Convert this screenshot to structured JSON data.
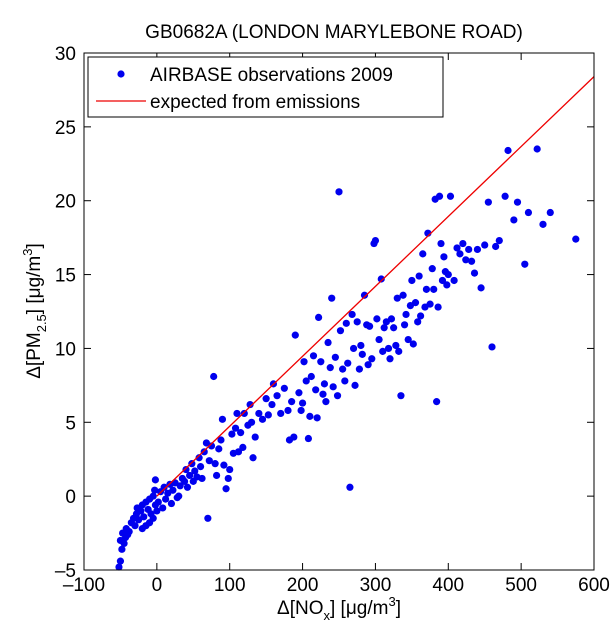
{
  "chart_data": {
    "type": "scatter",
    "title": "GB0682A (LONDON MARYLEBONE ROAD)",
    "xlabel": {
      "prefix": "Δ[NO",
      "sub": "x",
      "mid": "] [μg/m",
      "sup": "3",
      "suffix": "]"
    },
    "ylabel": {
      "prefix": "Δ[PM",
      "sub": "2.5",
      "mid": "] [μg/m",
      "sup": "3",
      "suffix": "]"
    },
    "xlim": [
      -100,
      600
    ],
    "ylim": [
      -5,
      30
    ],
    "xticks": [
      -100,
      0,
      100,
      200,
      300,
      400,
      500,
      600
    ],
    "xtick_labels": [
      "–100",
      "0",
      "100",
      "200",
      "300",
      "400",
      "500",
      "600"
    ],
    "yticks": [
      -5,
      0,
      5,
      10,
      15,
      20,
      25,
      30
    ],
    "ytick_labels": [
      "–5",
      "0",
      "5",
      "10",
      "15",
      "20",
      "25",
      "30"
    ],
    "grid": false,
    "legend_position": "top-left",
    "colors": {
      "observations": "#0000ee",
      "expected": "#ee0000",
      "axes": "#000000"
    },
    "series": [
      {
        "name": "AIRBASE observations 2009",
        "kind": "scatter",
        "points": [
          [
            -52,
            -4.8
          ],
          [
            -50,
            -4.4
          ],
          [
            -48,
            -3.6
          ],
          [
            -45,
            -3.2
          ],
          [
            -50,
            -3.0
          ],
          [
            -43,
            -2.8
          ],
          [
            -47,
            -2.5
          ],
          [
            -40,
            -2.6
          ],
          [
            -42,
            -2.2
          ],
          [
            -38,
            -2.4
          ],
          [
            -35,
            -1.8
          ],
          [
            -30,
            -2.0
          ],
          [
            -32,
            -1.5
          ],
          [
            -28,
            -1.2
          ],
          [
            -25,
            -1.6
          ],
          [
            -22,
            -1.0
          ],
          [
            -27,
            -0.8
          ],
          [
            -20,
            -0.6
          ],
          [
            -18,
            -1.4
          ],
          [
            -15,
            -0.4
          ],
          [
            -12,
            -0.9
          ],
          [
            -10,
            -0.2
          ],
          [
            -8,
            -1.2
          ],
          [
            -5,
            0.0
          ],
          [
            -2,
            -0.6
          ],
          [
            -20,
            -2.2
          ],
          [
            -15,
            -2.0
          ],
          [
            -10,
            -1.8
          ],
          [
            -5,
            -1.5
          ],
          [
            0,
            -1.0
          ],
          [
            -3,
            0.4
          ],
          [
            -2,
            1.1
          ],
          [
            2,
            -0.4
          ],
          [
            5,
            0.3
          ],
          [
            8,
            -0.8
          ],
          [
            10,
            0.6
          ],
          [
            12,
            -0.2
          ],
          [
            15,
            0.2
          ],
          [
            18,
            0.8
          ],
          [
            20,
            -0.5
          ],
          [
            22,
            0.4
          ],
          [
            25,
            0.9
          ],
          [
            28,
            -0.1
          ],
          [
            30,
            0.0
          ],
          [
            32,
            0.7
          ],
          [
            35,
            1.2
          ],
          [
            38,
            1.0
          ],
          [
            40,
            1.8
          ],
          [
            42,
            0.6
          ],
          [
            45,
            1.4
          ],
          [
            48,
            2.2
          ],
          [
            50,
            1.0
          ],
          [
            52,
            1.7
          ],
          [
            55,
            1.3
          ],
          [
            58,
            2.6
          ],
          [
            60,
            2.0
          ],
          [
            62,
            1.2
          ],
          [
            65,
            3.0
          ],
          [
            68,
            3.6
          ],
          [
            70,
            -1.5
          ],
          [
            72,
            2.4
          ],
          [
            75,
            3.4
          ],
          [
            78,
            8.1
          ],
          [
            80,
            2.2
          ],
          [
            82,
            1.4
          ],
          [
            85,
            3.2
          ],
          [
            88,
            3.8
          ],
          [
            90,
            5.2
          ],
          [
            92,
            2.1
          ],
          [
            95,
            0.5
          ],
          [
            98,
            1.2
          ],
          [
            100,
            1.8
          ],
          [
            103,
            4.2
          ],
          [
            105,
            2.9
          ],
          [
            108,
            4.6
          ],
          [
            110,
            5.6
          ],
          [
            112,
            3.0
          ],
          [
            115,
            4.3
          ],
          [
            118,
            3.3
          ],
          [
            120,
            5.6
          ],
          [
            125,
            4.8
          ],
          [
            128,
            6.2
          ],
          [
            130,
            5.0
          ],
          [
            132,
            2.6
          ],
          [
            135,
            4.0
          ],
          [
            140,
            5.6
          ],
          [
            145,
            5.2
          ],
          [
            150,
            6.6
          ],
          [
            153,
            5.5
          ],
          [
            158,
            6.2
          ],
          [
            160,
            7.6
          ],
          [
            165,
            6.8
          ],
          [
            170,
            5.6
          ],
          [
            175,
            7.3
          ],
          [
            180,
            5.8
          ],
          [
            182,
            3.8
          ],
          [
            185,
            6.4
          ],
          [
            188,
            4.0
          ],
          [
            190,
            10.9
          ],
          [
            195,
            7.0
          ],
          [
            198,
            5.8
          ],
          [
            200,
            6.3
          ],
          [
            202,
            9.1
          ],
          [
            205,
            7.8
          ],
          [
            208,
            3.9
          ],
          [
            210,
            5.4
          ],
          [
            212,
            8.1
          ],
          [
            215,
            9.5
          ],
          [
            218,
            7.2
          ],
          [
            220,
            5.3
          ],
          [
            222,
            12.1
          ],
          [
            225,
            9.1
          ],
          [
            228,
            6.9
          ],
          [
            230,
            7.6
          ],
          [
            232,
            6.4
          ],
          [
            235,
            10.4
          ],
          [
            238,
            8.7
          ],
          [
            240,
            13.4
          ],
          [
            242,
            7.4
          ],
          [
            245,
            9.4
          ],
          [
            248,
            6.8
          ],
          [
            250,
            20.6
          ],
          [
            252,
            11.2
          ],
          [
            255,
            8.6
          ],
          [
            258,
            7.8
          ],
          [
            260,
            11.7
          ],
          [
            262,
            9.0
          ],
          [
            265,
            0.6
          ],
          [
            268,
            12.3
          ],
          [
            270,
            10.0
          ],
          [
            272,
            7.5
          ],
          [
            275,
            11.8
          ],
          [
            278,
            8.6
          ],
          [
            280,
            10.2
          ],
          [
            282,
            9.6
          ],
          [
            285,
            13.6
          ],
          [
            288,
            11.6
          ],
          [
            290,
            8.9
          ],
          [
            292,
            11.5
          ],
          [
            295,
            9.3
          ],
          [
            298,
            17.1
          ],
          [
            300,
            17.3
          ],
          [
            302,
            12.0
          ],
          [
            305,
            10.6
          ],
          [
            308,
            14.7
          ],
          [
            310,
            9.8
          ],
          [
            312,
            11.4
          ],
          [
            315,
            11.8
          ],
          [
            318,
            10.0
          ],
          [
            320,
            9.3
          ],
          [
            322,
            12.0
          ],
          [
            325,
            11.4
          ],
          [
            328,
            10.2
          ],
          [
            330,
            13.4
          ],
          [
            332,
            9.8
          ],
          [
            335,
            6.8
          ],
          [
            338,
            13.6
          ],
          [
            340,
            11.6
          ],
          [
            342,
            12.3
          ],
          [
            345,
            10.6
          ],
          [
            348,
            12.9
          ],
          [
            350,
            14.6
          ],
          [
            352,
            10.3
          ],
          [
            355,
            13.1
          ],
          [
            358,
            11.8
          ],
          [
            360,
            14.9
          ],
          [
            362,
            12.2
          ],
          [
            365,
            16.4
          ],
          [
            368,
            12.8
          ],
          [
            370,
            14.0
          ],
          [
            372,
            17.8
          ],
          [
            375,
            13.0
          ],
          [
            378,
            15.4
          ],
          [
            380,
            14.0
          ],
          [
            382,
            20.1
          ],
          [
            384,
            6.4
          ],
          [
            386,
            12.8
          ],
          [
            388,
            20.3
          ],
          [
            390,
            17.1
          ],
          [
            392,
            14.6
          ],
          [
            394,
            16.2
          ],
          [
            396,
            15.2
          ],
          [
            398,
            14.3
          ],
          [
            400,
            15.0
          ],
          [
            403,
            20.3
          ],
          [
            408,
            14.6
          ],
          [
            412,
            16.8
          ],
          [
            416,
            16.4
          ],
          [
            420,
            17.1
          ],
          [
            424,
            16.0
          ],
          [
            428,
            16.7
          ],
          [
            432,
            15.9
          ],
          [
            436,
            15.1
          ],
          [
            440,
            16.7
          ],
          [
            445,
            14.1
          ],
          [
            450,
            17.0
          ],
          [
            455,
            19.9
          ],
          [
            460,
            10.1
          ],
          [
            465,
            16.9
          ],
          [
            470,
            17.3
          ],
          [
            478,
            20.3
          ],
          [
            482,
            23.4
          ],
          [
            490,
            18.7
          ],
          [
            495,
            19.9
          ],
          [
            505,
            15.7
          ],
          [
            510,
            19.2
          ],
          [
            522,
            23.5
          ],
          [
            530,
            18.4
          ],
          [
            540,
            19.2
          ],
          [
            575,
            17.4
          ]
        ]
      },
      {
        "name": "expected from emissions",
        "kind": "line",
        "points": [
          [
            0,
            0.0
          ],
          [
            600,
            28.4
          ]
        ]
      }
    ]
  }
}
